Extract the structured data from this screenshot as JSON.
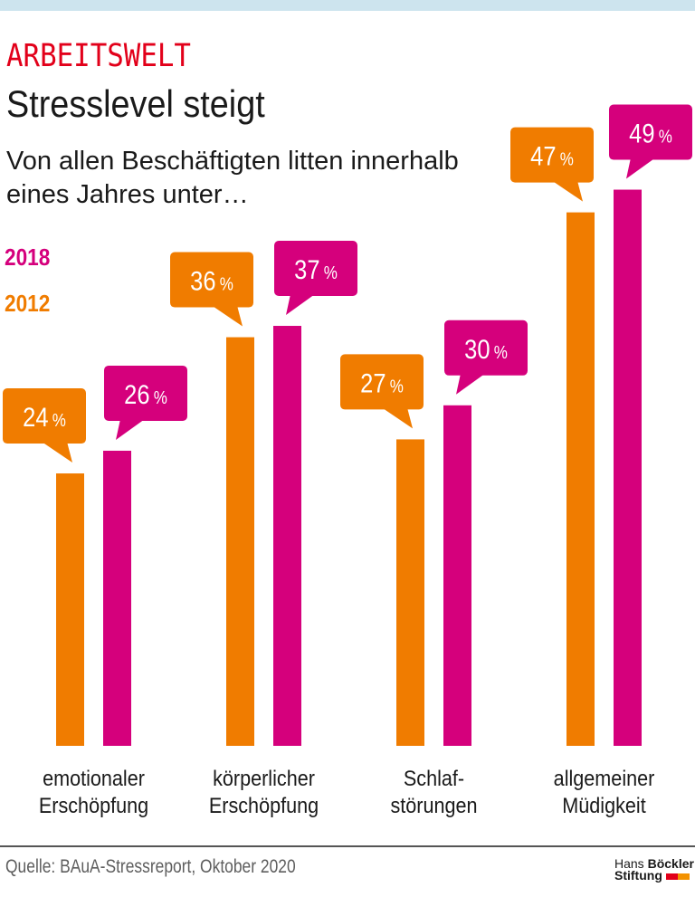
{
  "kicker": "ARBEITSWELT",
  "title": "Stresslevel steigt",
  "subtitle_lines": [
    "Von allen Beschäftigten litten innerhalb",
    "eines Jahres unter…"
  ],
  "legend": [
    {
      "label": "2018",
      "color": "#d5007c"
    },
    {
      "label": "2012",
      "color": "#f07c00"
    }
  ],
  "colors": {
    "kicker": "#e2001a",
    "series_2012": "#f07c00",
    "series_2018": "#d5007c",
    "top_band": "#cde4ee"
  },
  "footer": {
    "source": "Quelle: BAuA-Stressreport, Oktober 2020",
    "logo": {
      "line1_regular": "Hans",
      "line1_bold": "Böckler",
      "line2_bold": "Stiftung",
      "square_colors": [
        "#e2001a",
        "#f39200"
      ]
    }
  },
  "chart_data": {
    "type": "bar",
    "title": "Stresslevel steigt",
    "subtitle": "Von allen Beschäftigten litten innerhalb eines Jahres unter…",
    "categories": [
      "emotionaler Erschöpfung",
      "körperlicher Erschöpfung",
      "Schlafstörungen",
      "allgemeiner Müdigkeit"
    ],
    "category_label_lines": [
      [
        "emotionaler",
        "Erschöpfung"
      ],
      [
        "körperlicher",
        "Erschöpfung"
      ],
      [
        "Schlaf-",
        "störungen"
      ],
      [
        "allgemeiner",
        "Müdigkeit"
      ]
    ],
    "series": [
      {
        "name": "2012",
        "color": "#f07c00",
        "values": [
          24,
          36,
          27,
          47
        ]
      },
      {
        "name": "2018",
        "color": "#d5007c",
        "values": [
          26,
          37,
          30,
          49
        ]
      }
    ],
    "unit": "%",
    "xlabel": "",
    "ylabel": "",
    "ylim": [
      0,
      50
    ],
    "grid": false,
    "axes_visible": false,
    "legend_entries": [
      "2018",
      "2012"
    ],
    "legend_position": "top-left",
    "data_labels": "speech-bubbles"
  }
}
